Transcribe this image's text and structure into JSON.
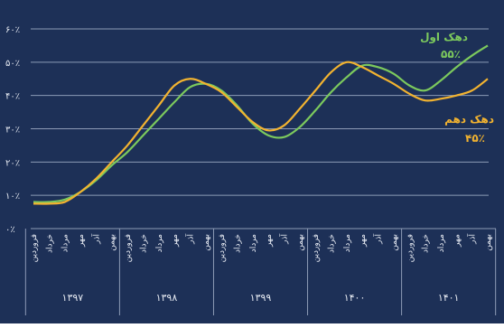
{
  "chart_data": {
    "type": "line",
    "title": "",
    "xlabel": "",
    "ylabel": "",
    "ylim": [
      0,
      60
    ],
    "y_ticks": [
      "۰٪",
      "۱۰٪",
      "۲۰٪",
      "۳۰٪",
      "۴۰٪",
      "۵۰٪",
      "۶۰٪"
    ],
    "grid": true,
    "legend": "inline-right",
    "colors": {
      "background": "#1d3057",
      "grid": "#8d9bb6",
      "text": "#e6eaf2",
      "series_1": "#7cc95d",
      "series_2": "#f2b330"
    },
    "year_groups": [
      {
        "label": "۱۳۹۷",
        "months": [
          "فروردین",
          "خرداد",
          "مرداد",
          "مهر",
          "آذر",
          "بهمن"
        ]
      },
      {
        "label": "۱۳۹۸",
        "months": [
          "فروردین",
          "خرداد",
          "مرداد",
          "مهر",
          "آذر",
          "بهمن"
        ]
      },
      {
        "label": "۱۳۹۹",
        "months": [
          "فروردین",
          "خرداد",
          "مرداد",
          "مهر",
          "آذر",
          "بهمن"
        ]
      },
      {
        "label": "۱۴۰۰",
        "months": [
          "فروردین",
          "خرداد",
          "مرداد",
          "مهر",
          "آذر",
          "بهمن"
        ]
      },
      {
        "label": "۱۴۰۱",
        "months": [
          "فروردین",
          "خرداد",
          "مرداد",
          "مهر",
          "آذر",
          "بهمن"
        ]
      }
    ],
    "x_count": 30,
    "series": [
      {
        "name": "دهک اول",
        "end_label": "۵۵٪",
        "values": [
          8,
          8,
          8.7,
          11,
          14.5,
          19,
          23,
          28,
          33,
          38,
          42.5,
          43.5,
          41.5,
          37,
          31.5,
          28,
          27.5,
          30.5,
          35.5,
          41,
          45.5,
          49,
          48.5,
          46.5,
          43,
          41.5,
          44.5,
          48.5,
          52,
          55
        ]
      },
      {
        "name": "دهک دهم",
        "end_label": "۴۵٪",
        "values": [
          7.5,
          7.5,
          8,
          11,
          15,
          20,
          25,
          31,
          37,
          43,
          45,
          43.5,
          41,
          36.5,
          32,
          29.5,
          31,
          36,
          41.5,
          47,
          50,
          48.5,
          46,
          43.5,
          40.5,
          38.5,
          39,
          40,
          41.5,
          45
        ]
      }
    ]
  }
}
